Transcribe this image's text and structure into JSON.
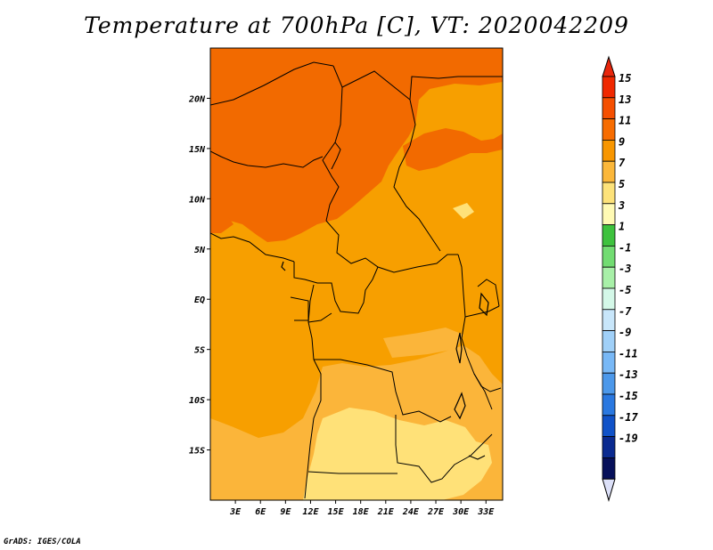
{
  "title": "Temperature at 700hPa [C], VT: 2020042209",
  "credit": "GrADS: IGES/COLA",
  "map": {
    "lon_range": [
      0,
      35
    ],
    "lat_range": [
      -20,
      25
    ],
    "lat_ticks": [
      {
        "value": 20,
        "label": "20N"
      },
      {
        "value": 15,
        "label": "15N"
      },
      {
        "value": 10,
        "label": "10N"
      },
      {
        "value": 5,
        "label": "5N"
      },
      {
        "value": 0,
        "label": "EQ"
      },
      {
        "value": -5,
        "label": "5S"
      },
      {
        "value": -10,
        "label": "10S"
      },
      {
        "value": -15,
        "label": "15S"
      }
    ],
    "lon_ticks": [
      {
        "value": 3,
        "label": "3E"
      },
      {
        "value": 6,
        "label": "6E"
      },
      {
        "value": 9,
        "label": "9E"
      },
      {
        "value": 12,
        "label": "12E"
      },
      {
        "value": 15,
        "label": "15E"
      },
      {
        "value": 18,
        "label": "18E"
      },
      {
        "value": 21,
        "label": "21E"
      },
      {
        "value": 24,
        "label": "24E"
      },
      {
        "value": 27,
        "label": "27E"
      },
      {
        "value": 30,
        "label": "30E"
      },
      {
        "value": 33,
        "label": "33E"
      }
    ],
    "fill_colors": {
      "t5_7": "#ffe178",
      "t7_9": "#fbb53a",
      "t9_11": "#f79f00",
      "t11_13": "#f26a00",
      "border": "#000000"
    }
  },
  "colorbar": {
    "labels": [
      "15",
      "13",
      "11",
      "9",
      "7",
      "5",
      "3",
      "1",
      "-1",
      "-3",
      "-5",
      "-7",
      "-9",
      "-11",
      "-13",
      "-15",
      "-17",
      "-19"
    ],
    "colors": [
      "#f02800",
      "#f54f00",
      "#f76c00",
      "#f89600",
      "#fbb73a",
      "#fde27a",
      "#fffab4",
      "#3ec23e",
      "#72dc72",
      "#a8f0a8",
      "#d4f8e8",
      "#c8e6fa",
      "#a0d0f8",
      "#78b8f6",
      "#4c98ea",
      "#2a78e0",
      "#1052c8",
      "#0a2a90",
      "#06105a"
    ],
    "top_color": "#e8260c",
    "bottom_color": "#dce0f8"
  }
}
